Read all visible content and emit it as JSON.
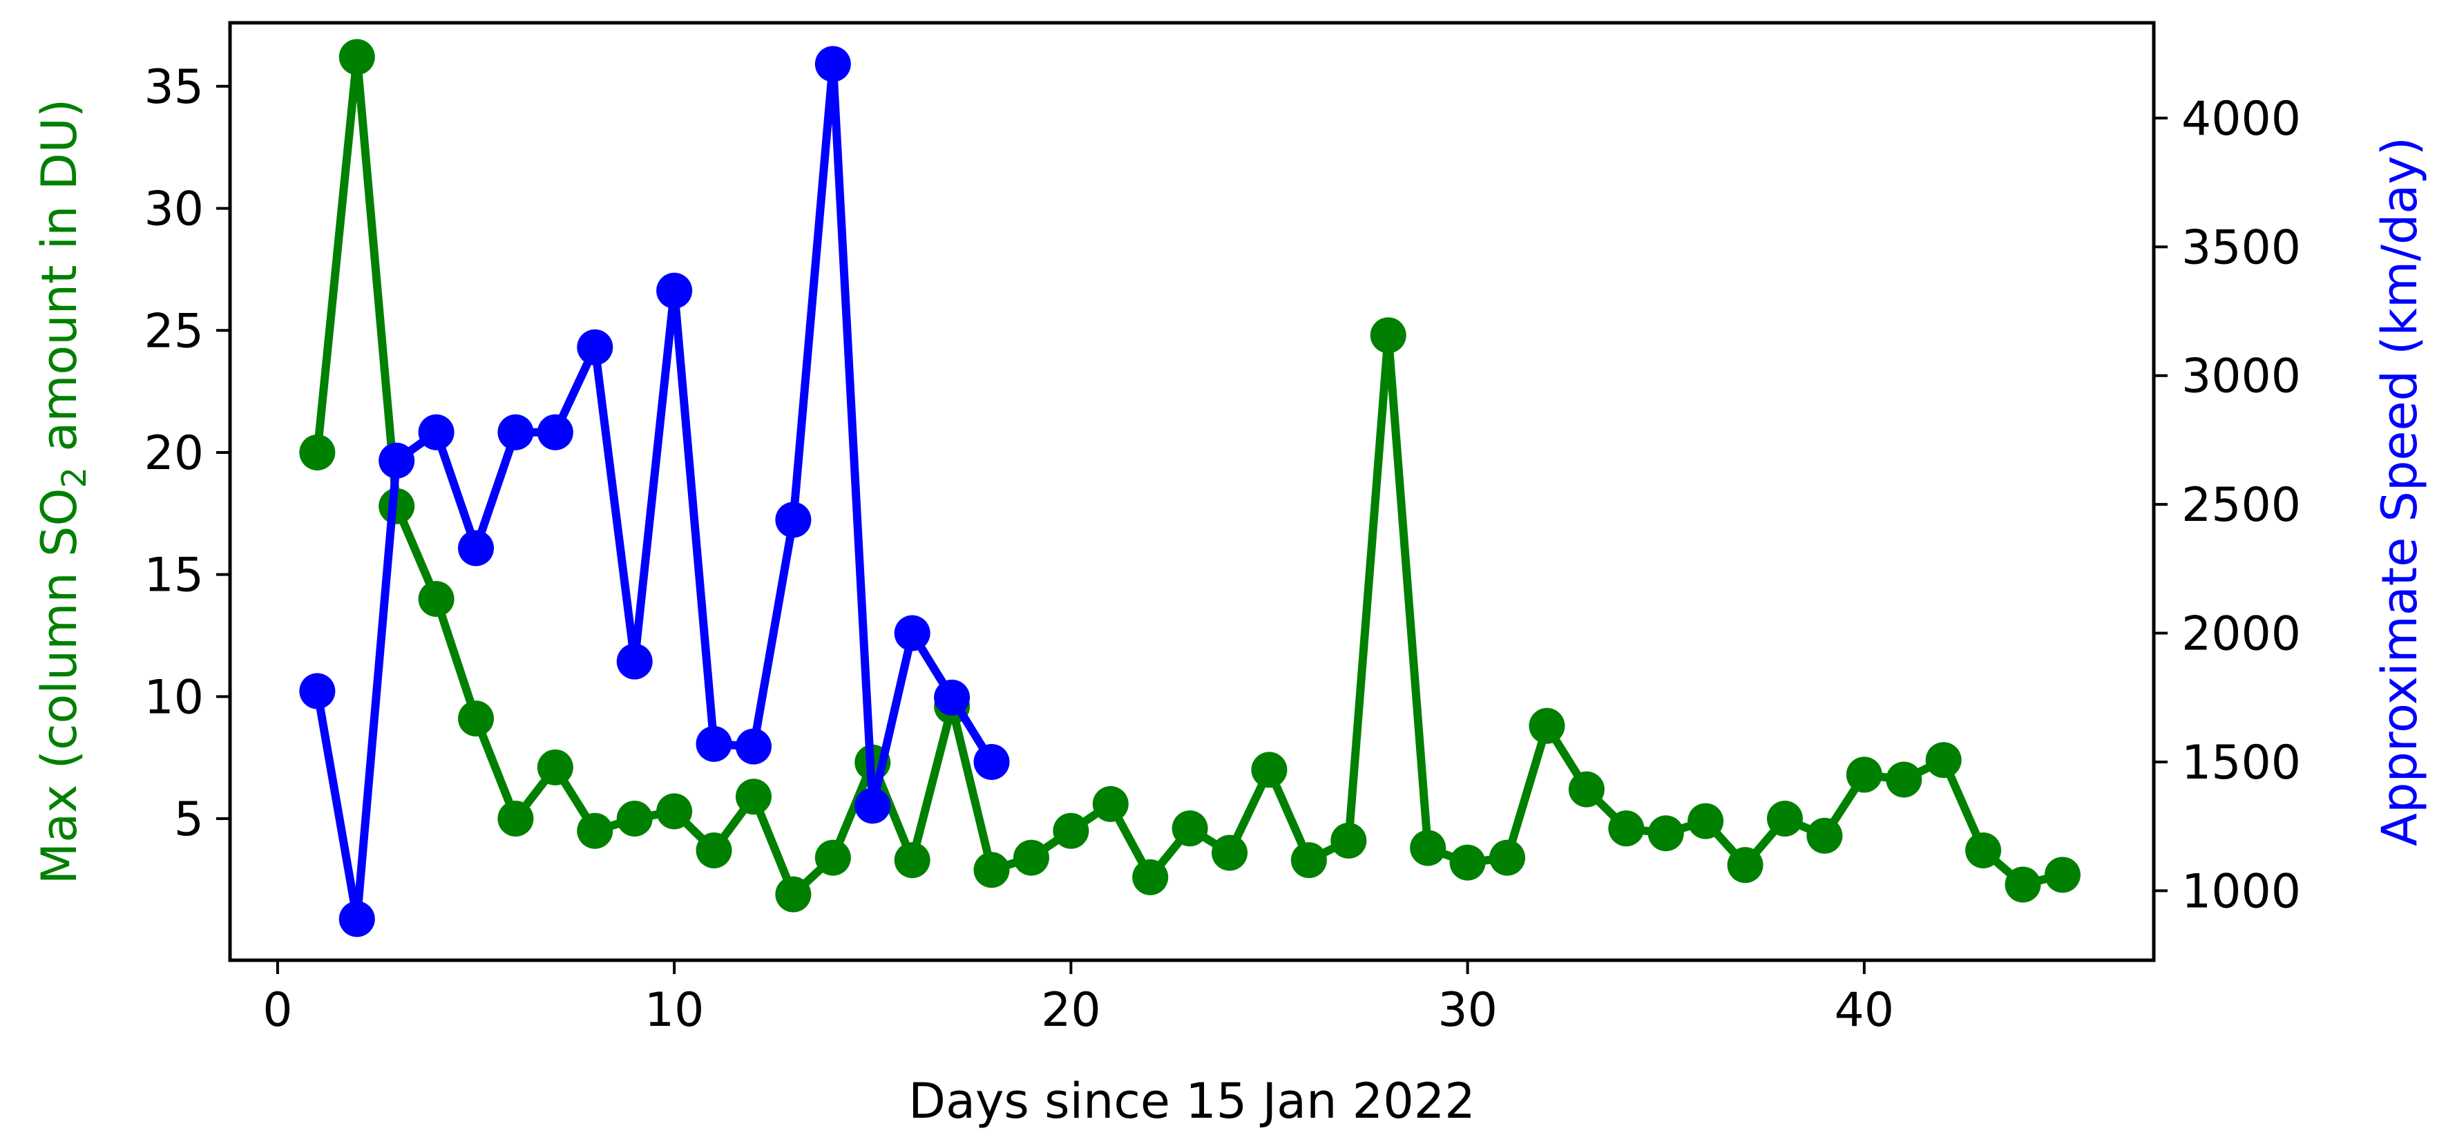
{
  "chart_data": {
    "type": "line",
    "xlabel": "Days since 15 Jan 2022",
    "ylabel_left": {
      "prefix": "Max (column SO",
      "subscript": "2",
      "suffix": " amount in DU)"
    },
    "ylabel_right": "Approximate Speed (km/day)",
    "xlim": [
      -1.2,
      47.3
    ],
    "ylim_left": [
      -0.8,
      37.6
    ],
    "ylim_right": [
      730,
      4370
    ],
    "xticks": [
      0,
      10,
      20,
      30,
      40
    ],
    "yticks_left": [
      5,
      10,
      15,
      20,
      25,
      30,
      35
    ],
    "yticks_right": [
      1000,
      1500,
      2000,
      2500,
      3000,
      3500,
      4000
    ],
    "grid": false,
    "series": [
      {
        "axis": "left",
        "color": "#008000",
        "x": [
          1,
          2,
          3,
          4,
          5,
          6,
          7,
          8,
          9,
          10,
          11,
          12,
          13,
          14,
          15,
          16,
          17,
          18,
          19,
          20,
          21,
          22,
          23,
          24,
          25,
          26,
          27,
          28,
          29,
          30,
          31,
          32,
          33,
          34,
          35,
          36,
          37,
          38,
          39,
          40,
          41,
          42,
          43,
          44,
          45
        ],
        "values": [
          20.0,
          36.2,
          17.8,
          14.0,
          9.1,
          5.0,
          7.1,
          4.5,
          5.0,
          5.3,
          3.7,
          5.9,
          1.9,
          3.4,
          7.3,
          3.3,
          9.6,
          2.9,
          3.4,
          4.5,
          5.6,
          2.6,
          4.6,
          3.6,
          7.0,
          3.3,
          4.1,
          24.8,
          3.8,
          3.2,
          3.4,
          8.8,
          6.2,
          4.6,
          4.4,
          4.9,
          3.1,
          5.0,
          4.3,
          6.8,
          6.6,
          7.4,
          3.7,
          2.3,
          2.7
        ]
      },
      {
        "axis": "right",
        "color": "#0000ff",
        "x": [
          1,
          2,
          3,
          4,
          5,
          6,
          7,
          8,
          9,
          10,
          11,
          12,
          13,
          14,
          15,
          16,
          17,
          18
        ],
        "values": [
          1775,
          890,
          2670,
          2780,
          2330,
          2780,
          2780,
          3110,
          1890,
          3330,
          1570,
          1560,
          2440,
          4210,
          1330,
          2000,
          1750,
          1500
        ]
      }
    ]
  }
}
